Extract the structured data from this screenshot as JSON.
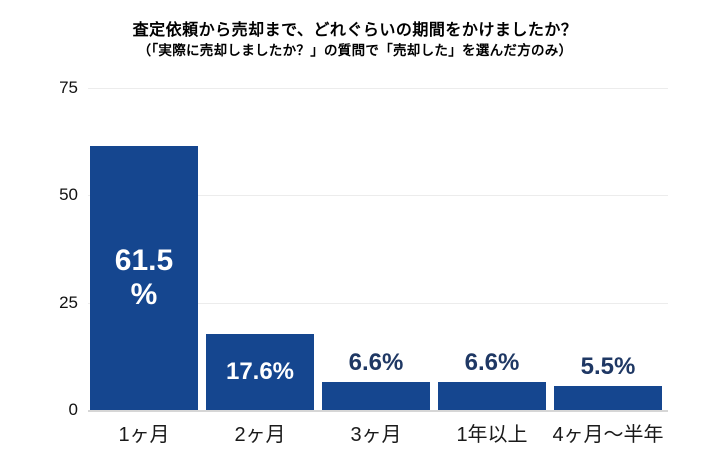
{
  "title": "査定依頼から売却まで、どれぐらいの期間をかけましたか？",
  "subtitle": "（「実際に売却しましたか？」の質問で「売却した」を選んだ方のみ）",
  "chart_data": {
    "type": "bar",
    "title": "査定依頼から売却まで、どれぐらいの期間をかけましたか？",
    "subtitle": "（「実際に売却しましたか？」の質問で「売却した」を選んだ方のみ）",
    "categories": [
      "1ヶ月",
      "2ヶ月",
      "3ヶ月",
      "1年以上",
      "4ヶ月〜半年"
    ],
    "values": [
      61.5,
      17.6,
      6.6,
      6.6,
      5.5
    ],
    "value_labels": [
      [
        "61.5",
        "%"
      ],
      [
        "17.6%"
      ],
      [
        "6.6%"
      ],
      [
        "6.6%"
      ],
      [
        "5.5%"
      ]
    ],
    "label_position": [
      "inside",
      "inside",
      "above",
      "above",
      "above"
    ],
    "xlabel": "",
    "ylabel": "",
    "y_ticks": [
      0,
      25,
      50,
      75
    ],
    "ylim": [
      0,
      75
    ],
    "grid": "horizontal",
    "legend": "none",
    "bar_color": "#15468f",
    "inside_label_color": "#ffffff",
    "outside_label_color": "#1f3864"
  }
}
